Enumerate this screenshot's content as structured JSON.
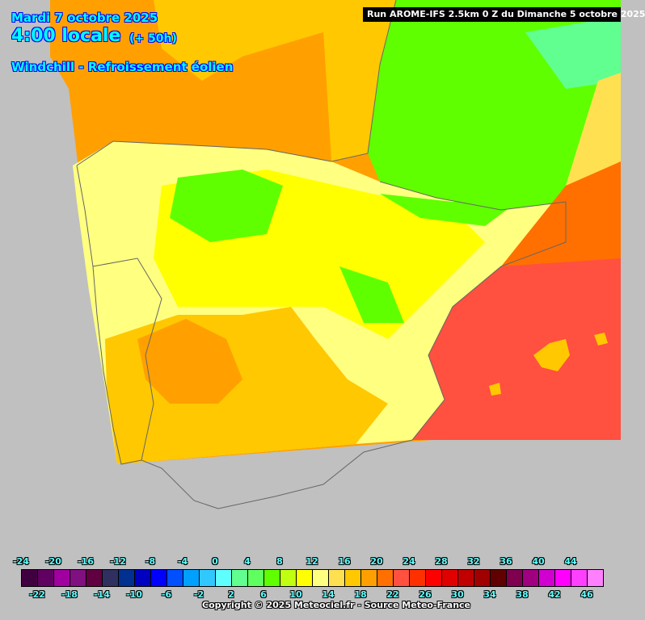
{
  "header": {
    "date": "Mardi 7 octobre 2025",
    "time": "4:00 locale",
    "lead": "(+ 50h)",
    "variable": "Windchill - Refroissement éolien",
    "run": "Run AROME-IFS 2.5km 0 Z du Dimanche 5 octobre 2025"
  },
  "legend": {
    "labels": [
      "-24",
      "-22",
      "-20",
      "-18",
      "-16",
      "-14",
      "-12",
      "-10",
      "-8",
      "-6",
      "-4",
      "-2",
      "0",
      "2",
      "4",
      "6",
      "8",
      "10",
      "12",
      "14",
      "16",
      "18",
      "20",
      "22",
      "24",
      "26",
      "28",
      "30",
      "32",
      "34",
      "36",
      "38",
      "40",
      "42",
      "44",
      "46"
    ],
    "colors": [
      "#400040",
      "#600060",
      "#a000a0",
      "#801080",
      "#600040",
      "#303060",
      "#003090",
      "#0000c0",
      "#0000ff",
      "#0050ff",
      "#00a0ff",
      "#30c8ff",
      "#60ffff",
      "#60ff90",
      "#60ff60",
      "#60ff00",
      "#c0ff10",
      "#ffff00",
      "#ffff80",
      "#ffe050",
      "#ffc800",
      "#ffa000",
      "#ff7000",
      "#ff5040",
      "#ff3000",
      "#ff0000",
      "#e00000",
      "#c00000",
      "#a00000",
      "#600000",
      "#800050",
      "#a00080",
      "#d000d0",
      "#ff00ff",
      "#ff40ff",
      "#ff80ff"
    ]
  },
  "copyright": "Copyright © 2025 Meteociel.fr - Source Meteo-France"
}
